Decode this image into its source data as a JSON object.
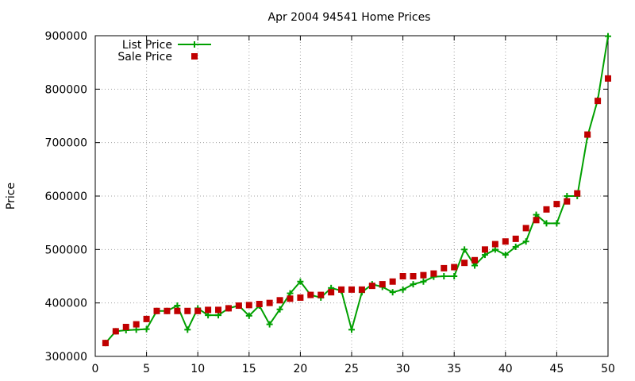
{
  "chart_data": {
    "type": "line",
    "title": "Apr 2004 94541 Home Prices",
    "xlabel": "",
    "ylabel": "Price",
    "xlim": [
      0,
      50
    ],
    "ylim": [
      300000,
      900000
    ],
    "x_ticks": [
      0,
      5,
      10,
      15,
      20,
      25,
      30,
      35,
      40,
      45,
      50
    ],
    "y_ticks": [
      300000,
      400000,
      500000,
      600000,
      700000,
      800000,
      900000
    ],
    "x_tick_labels": [
      "0",
      "5",
      "10",
      "15",
      "20",
      "25",
      "30",
      "35",
      "40",
      "45",
      "50"
    ],
    "y_tick_labels": [
      "300000",
      "400000",
      "500000",
      "600000",
      "700000",
      "800000",
      "900000"
    ],
    "grid": true,
    "legend_position": "top-left",
    "x": [
      1,
      2,
      3,
      4,
      5,
      6,
      7,
      8,
      9,
      10,
      11,
      12,
      13,
      14,
      15,
      16,
      17,
      18,
      19,
      20,
      21,
      22,
      23,
      24,
      25,
      26,
      27,
      28,
      29,
      30,
      31,
      32,
      33,
      34,
      35,
      36,
      37,
      38,
      39,
      40,
      41,
      42,
      43,
      44,
      45,
      46,
      47,
      48,
      49,
      50
    ],
    "series": [
      {
        "name": "List Price",
        "style": "linespoints",
        "color": "#00a000",
        "values": [
          325000,
          347000,
          349000,
          350000,
          351000,
          385000,
          385000,
          395000,
          350000,
          390000,
          377000,
          377000,
          390000,
          395000,
          376000,
          395000,
          360000,
          388000,
          418000,
          440000,
          415000,
          410000,
          428000,
          423000,
          350000,
          420000,
          435000,
          430000,
          420000,
          425000,
          435000,
          440000,
          449000,
          450000,
          450000,
          500000,
          470000,
          490000,
          500000,
          490000,
          505000,
          515000,
          565000,
          549000,
          549000,
          600000,
          600000,
          712000,
          780000,
          899000
        ]
      },
      {
        "name": "Sale Price",
        "style": "points",
        "color": "#c00000",
        "values": [
          325000,
          347000,
          355000,
          360000,
          370000,
          385000,
          385000,
          385000,
          385000,
          385000,
          387000,
          387000,
          390000,
          395000,
          396000,
          398000,
          400000,
          405000,
          408000,
          410000,
          415000,
          415000,
          420000,
          425000,
          425000,
          425000,
          432000,
          435000,
          440000,
          450000,
          450000,
          452000,
          455000,
          465000,
          467000,
          475000,
          480000,
          500000,
          510000,
          515000,
          520000,
          540000,
          555000,
          575000,
          585000,
          590000,
          605000,
          715000,
          778000,
          820000
        ]
      }
    ]
  }
}
